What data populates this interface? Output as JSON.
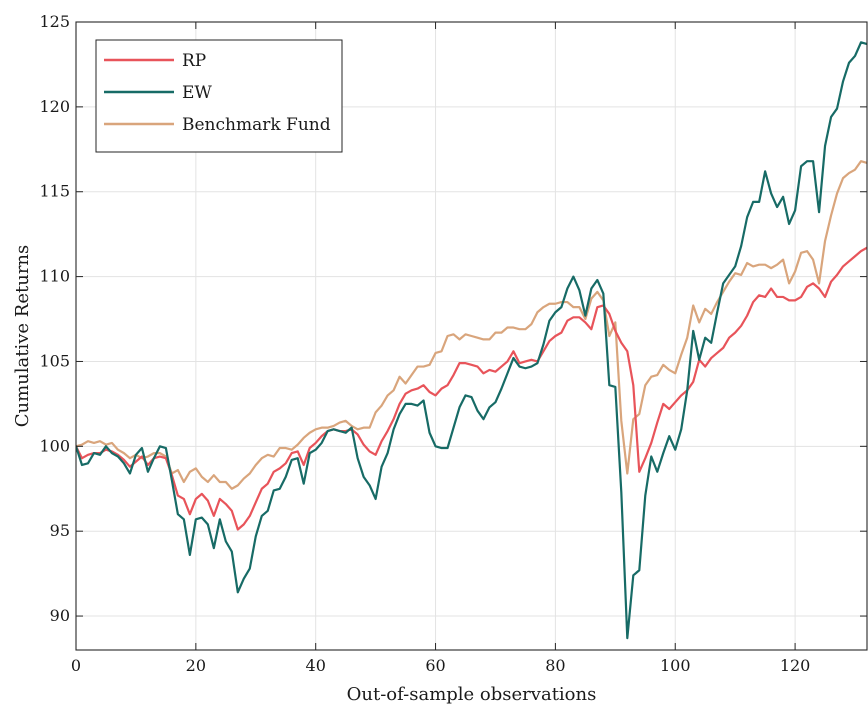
{
  "chart_data": {
    "type": "line",
    "xlabel": "Out-of-sample observations",
    "ylabel": "Cumulative Returns",
    "xlim": [
      0,
      132
    ],
    "ylim": [
      88,
      125
    ],
    "xticks": [
      0,
      20,
      40,
      60,
      80,
      100,
      120
    ],
    "yticks": [
      90,
      95,
      100,
      105,
      110,
      115,
      120,
      125
    ],
    "grid": true,
    "legend_position": "top-left",
    "series": [
      {
        "name": "RP",
        "color": "#e8545a",
        "values": [
          100,
          99.3,
          99.5,
          99.6,
          99.6,
          99.8,
          99.7,
          99.5,
          99.2,
          98.8,
          99.1,
          99.4,
          98.9,
          99.3,
          99.4,
          99.3,
          98.3,
          97.1,
          96.9,
          96.0,
          96.9,
          97.2,
          96.8,
          95.9,
          96.9,
          96.6,
          96.2,
          95.1,
          95.4,
          95.9,
          96.7,
          97.5,
          97.8,
          98.5,
          98.7,
          99.0,
          99.6,
          99.7,
          98.9,
          99.9,
          100.2,
          100.6,
          100.9,
          101.0,
          100.9,
          100.9,
          101.0,
          100.7,
          100.1,
          99.7,
          99.5,
          100.3,
          100.9,
          101.6,
          102.5,
          103.1,
          103.3,
          103.4,
          103.6,
          103.2,
          103.0,
          103.4,
          103.6,
          104.2,
          104.9,
          104.9,
          104.8,
          104.7,
          104.3,
          104.5,
          104.4,
          104.7,
          105.0,
          105.6,
          104.9,
          105.0,
          105.1,
          105.0,
          105.6,
          106.2,
          106.5,
          106.7,
          107.4,
          107.6,
          107.6,
          107.3,
          106.9,
          108.2,
          108.3,
          107.8,
          106.8,
          106.1,
          105.6,
          103.6,
          98.5,
          99.3,
          100.2,
          101.4,
          102.5,
          102.2,
          102.6,
          103.0,
          103.3,
          103.8,
          105.1,
          104.7,
          105.2,
          105.5,
          105.8,
          106.4,
          106.7,
          107.1,
          107.7,
          108.5,
          108.9,
          108.8,
          109.3,
          108.8,
          108.8,
          108.6,
          108.6,
          108.8,
          109.4,
          109.6,
          109.3,
          108.8,
          109.7,
          110.1,
          110.6,
          110.9,
          111.2,
          111.5,
          111.7
        ]
      },
      {
        "name": "EW",
        "color": "#176b66",
        "values": [
          100,
          98.9,
          99.0,
          99.6,
          99.5,
          100.0,
          99.6,
          99.4,
          99.0,
          98.4,
          99.5,
          99.9,
          98.5,
          99.3,
          100.0,
          99.9,
          98.0,
          96.0,
          95.7,
          93.6,
          95.7,
          95.8,
          95.4,
          94.0,
          95.7,
          94.4,
          93.8,
          91.4,
          92.2,
          92.8,
          94.7,
          95.9,
          96.2,
          97.4,
          97.5,
          98.2,
          99.2,
          99.3,
          97.8,
          99.6,
          99.8,
          100.2,
          100.9,
          101.0,
          100.9,
          100.8,
          101.1,
          99.3,
          98.2,
          97.7,
          96.9,
          98.8,
          99.6,
          101.0,
          101.9,
          102.5,
          102.5,
          102.4,
          102.7,
          100.8,
          100.0,
          99.9,
          99.9,
          101.1,
          102.3,
          103.0,
          102.9,
          102.1,
          101.6,
          102.3,
          102.6,
          103.4,
          104.3,
          105.2,
          104.7,
          104.6,
          104.7,
          104.9,
          106.0,
          107.4,
          107.9,
          108.2,
          109.3,
          110.0,
          109.2,
          107.7,
          109.3,
          109.8,
          109.0,
          103.6,
          103.5,
          97.3,
          88.7,
          92.4,
          92.7,
          97.1,
          99.4,
          98.5,
          99.6,
          100.6,
          99.8,
          101.0,
          103.3,
          106.8,
          105.1,
          106.4,
          106.1,
          107.9,
          109.6,
          110.1,
          110.6,
          111.8,
          113.5,
          114.4,
          114.4,
          116.2,
          114.9,
          114.1,
          114.7,
          113.1,
          113.9,
          116.5,
          116.8,
          116.8,
          113.8,
          117.7,
          119.4,
          119.9,
          121.5,
          122.6,
          123.0,
          123.8,
          123.7
        ]
      },
      {
        "name": "Benchmark Fund",
        "color": "#d9a57c",
        "values": [
          100,
          100.1,
          100.3,
          100.2,
          100.3,
          100.1,
          100.2,
          99.8,
          99.6,
          99.3,
          99.5,
          99.3,
          99.4,
          99.6,
          99.6,
          99.4,
          98.4,
          98.6,
          97.9,
          98.5,
          98.7,
          98.2,
          97.9,
          98.3,
          97.9,
          97.9,
          97.5,
          97.7,
          98.1,
          98.4,
          98.9,
          99.3,
          99.5,
          99.4,
          99.9,
          99.9,
          99.8,
          100.1,
          100.5,
          100.8,
          101.0,
          101.1,
          101.1,
          101.2,
          101.4,
          101.5,
          101.2,
          101.0,
          101.1,
          101.1,
          102.0,
          102.4,
          103.0,
          103.3,
          104.1,
          103.7,
          104.2,
          104.7,
          104.7,
          104.8,
          105.5,
          105.6,
          106.5,
          106.6,
          106.3,
          106.6,
          106.5,
          106.4,
          106.3,
          106.3,
          106.7,
          106.7,
          107.0,
          107.0,
          106.9,
          106.9,
          107.2,
          107.9,
          108.2,
          108.4,
          108.4,
          108.5,
          108.5,
          108.2,
          108.2,
          107.5,
          108.7,
          109.1,
          108.6,
          106.5,
          107.3,
          101.5,
          98.4,
          101.6,
          101.9,
          103.6,
          104.1,
          104.2,
          104.8,
          104.5,
          104.3,
          105.4,
          106.4,
          108.3,
          107.3,
          108.1,
          107.8,
          108.5,
          109.1,
          109.7,
          110.2,
          110.1,
          110.8,
          110.6,
          110.7,
          110.7,
          110.5,
          110.7,
          111.0,
          109.6,
          110.3,
          111.4,
          111.5,
          111.0,
          109.6,
          112.1,
          113.6,
          114.9,
          115.8,
          116.1,
          116.3,
          116.8,
          116.7,
          117.3
        ]
      }
    ]
  }
}
